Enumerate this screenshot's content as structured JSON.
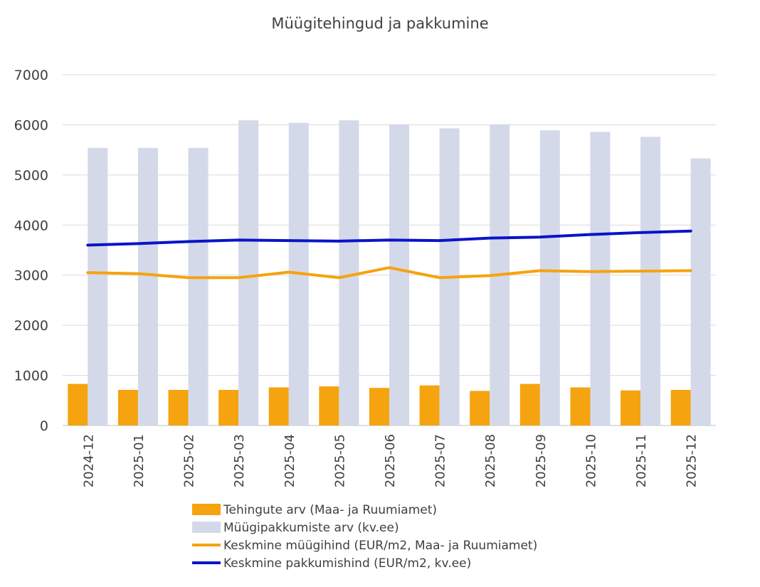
{
  "chart_data": {
    "type": "bar",
    "title": "Müügitehingud ja pakkumine",
    "categories": [
      "2024-12",
      "2025-01",
      "2025-02",
      "2025-03",
      "2025-04",
      "2025-05",
      "2025-06",
      "2025-07",
      "2025-08",
      "2025-09",
      "2025-10",
      "2025-11",
      "2025-12"
    ],
    "ylim": [
      0,
      7000
    ],
    "yticks": [
      "0",
      "1000",
      "2000",
      "3000",
      "4000",
      "5000",
      "6000",
      "7000"
    ],
    "grid": true,
    "legend_position": "bottom",
    "series": [
      {
        "name": "Tehingute arv (Maa- ja Ruumiamet)",
        "kind": "bar",
        "color": "#f5a30f",
        "values": [
          830,
          710,
          710,
          710,
          760,
          780,
          750,
          800,
          690,
          830,
          760,
          700,
          710
        ]
      },
      {
        "name": "Müügipakkumiste arv (kv.ee)",
        "kind": "bar",
        "color": "#d4d9ea",
        "values": [
          5540,
          5540,
          5540,
          6090,
          6040,
          6090,
          6010,
          5930,
          6010,
          5890,
          5860,
          5760,
          5330
        ]
      },
      {
        "name": "Keskmine müügihind (EUR/m2, Maa- ja Ruumiamet)",
        "kind": "line",
        "color": "#f5a30f",
        "values": [
          3050,
          3030,
          2950,
          2950,
          3060,
          2950,
          3150,
          2950,
          2990,
          3090,
          3070,
          3080,
          3090
        ]
      },
      {
        "name": "Keskmine pakkumishind (EUR/m2, kv.ee)",
        "kind": "line",
        "color": "#0a14c8",
        "values": [
          3600,
          3630,
          3670,
          3700,
          3690,
          3680,
          3700,
          3690,
          3740,
          3760,
          3810,
          3850,
          3880
        ]
      }
    ]
  }
}
